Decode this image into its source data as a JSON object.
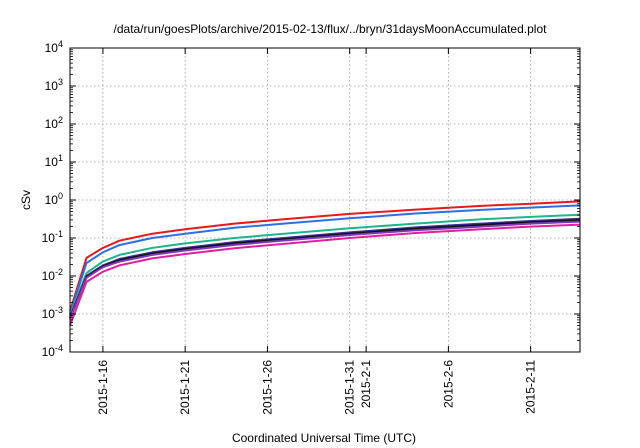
{
  "chart_data": {
    "type": "line",
    "title": "/data/run/goesPlots/archive/2015-02-13/flux/../bryn/31daysMoonAccumulated.plot",
    "xlabel": "Coordinated Universal Time (UTC)",
    "ylabel": "cSv",
    "yscale": "log",
    "ylim": [
      0.0001,
      10000
    ],
    "xlim": [
      "2015-01-14",
      "2015-02-14"
    ],
    "grid": true,
    "legend": "none",
    "y_ticks": [
      {
        "base": "10",
        "exp": "-4"
      },
      {
        "base": "10",
        "exp": "-3"
      },
      {
        "base": "10",
        "exp": "-2"
      },
      {
        "base": "10",
        "exp": "-1"
      },
      {
        "base": "10",
        "exp": "0"
      },
      {
        "base": "10",
        "exp": "1"
      },
      {
        "base": "10",
        "exp": "2"
      },
      {
        "base": "10",
        "exp": "3"
      },
      {
        "base": "10",
        "exp": "4"
      }
    ],
    "x_ticks": [
      {
        "date": "2015-01-16",
        "label": "2015-1-16"
      },
      {
        "date": "2015-01-21",
        "label": "2015-1-21"
      },
      {
        "date": "2015-01-26",
        "label": "2015-1-26"
      },
      {
        "date": "2015-01-31",
        "label": "2015-1-31"
      },
      {
        "date": "2015-02-01",
        "label": "2015-2-1"
      },
      {
        "date": "2015-02-06",
        "label": "2015-2-6"
      },
      {
        "date": "2015-02-11",
        "label": "2015-2-11"
      }
    ],
    "series": [
      {
        "color": "#e41a1c",
        "x": [
          "2015-01-14",
          "2015-01-15",
          "2015-01-16",
          "2015-01-17",
          "2015-01-19",
          "2015-01-21",
          "2015-01-24",
          "2015-01-27",
          "2015-01-31",
          "2015-02-04",
          "2015-02-08",
          "2015-02-11",
          "2015-02-14"
        ],
        "y": [
          0.0012,
          0.03,
          0.055,
          0.085,
          0.13,
          0.17,
          0.24,
          0.31,
          0.43,
          0.56,
          0.7,
          0.8,
          0.92
        ]
      },
      {
        "color": "#2f6fe0",
        "x": [
          "2015-01-14",
          "2015-01-15",
          "2015-01-16",
          "2015-01-17",
          "2015-01-19",
          "2015-01-21",
          "2015-01-24",
          "2015-01-27",
          "2015-01-31",
          "2015-02-04",
          "2015-02-08",
          "2015-02-11",
          "2015-02-14"
        ],
        "y": [
          0.001,
          0.022,
          0.042,
          0.065,
          0.1,
          0.13,
          0.185,
          0.24,
          0.33,
          0.44,
          0.55,
          0.63,
          0.72
        ]
      },
      {
        "color": "#1fb58a",
        "x": [
          "2015-01-14",
          "2015-01-15",
          "2015-01-16",
          "2015-01-17",
          "2015-01-19",
          "2015-01-21",
          "2015-01-24",
          "2015-01-27",
          "2015-01-31",
          "2015-02-04",
          "2015-02-08",
          "2015-02-11",
          "2015-02-14"
        ],
        "y": [
          0.0009,
          0.012,
          0.024,
          0.036,
          0.055,
          0.072,
          0.1,
          0.13,
          0.18,
          0.24,
          0.31,
          0.36,
          0.41
        ]
      },
      {
        "color": "#3b2f8f",
        "x": [
          "2015-01-14",
          "2015-01-15",
          "2015-01-16",
          "2015-01-17",
          "2015-01-19",
          "2015-01-21",
          "2015-01-24",
          "2015-01-27",
          "2015-01-31",
          "2015-02-04",
          "2015-02-08",
          "2015-02-11",
          "2015-02-14"
        ],
        "y": [
          0.0008,
          0.01,
          0.019,
          0.028,
          0.042,
          0.055,
          0.078,
          0.1,
          0.14,
          0.19,
          0.24,
          0.28,
          0.32
        ]
      },
      {
        "color": "#111111",
        "x": [
          "2015-01-14",
          "2015-01-15",
          "2015-01-16",
          "2015-01-17",
          "2015-01-19",
          "2015-01-21",
          "2015-01-24",
          "2015-01-27",
          "2015-01-31",
          "2015-02-04",
          "2015-02-08",
          "2015-02-11",
          "2015-02-14"
        ],
        "y": [
          0.0008,
          0.0095,
          0.018,
          0.026,
          0.039,
          0.051,
          0.072,
          0.093,
          0.13,
          0.175,
          0.22,
          0.26,
          0.29
        ]
      },
      {
        "color": "#7a3bb8",
        "x": [
          "2015-01-14",
          "2015-01-15",
          "2015-01-16",
          "2015-01-17",
          "2015-01-19",
          "2015-01-21",
          "2015-01-24",
          "2015-01-27",
          "2015-01-31",
          "2015-02-04",
          "2015-02-08",
          "2015-02-11",
          "2015-02-14"
        ],
        "y": [
          0.00075,
          0.009,
          0.017,
          0.024,
          0.036,
          0.047,
          0.066,
          0.086,
          0.12,
          0.16,
          0.2,
          0.24,
          0.27
        ]
      },
      {
        "color": "#e020a0",
        "x": [
          "2015-01-14",
          "2015-01-15",
          "2015-01-16",
          "2015-01-17",
          "2015-01-19",
          "2015-01-21",
          "2015-01-24",
          "2015-01-27",
          "2015-01-31",
          "2015-02-04",
          "2015-02-08",
          "2015-02-11",
          "2015-02-14"
        ],
        "y": [
          0.0005,
          0.007,
          0.013,
          0.019,
          0.029,
          0.038,
          0.054,
          0.07,
          0.1,
          0.135,
          0.17,
          0.2,
          0.225
        ]
      }
    ]
  }
}
